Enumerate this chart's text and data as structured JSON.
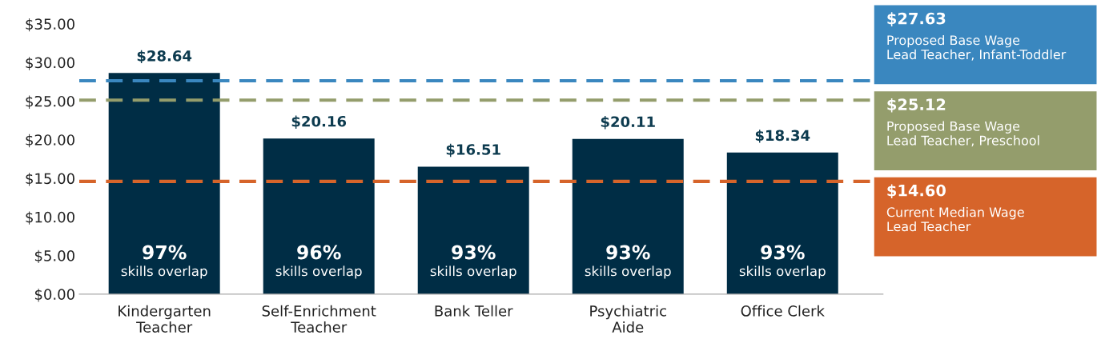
{
  "chart_data": {
    "type": "bar",
    "categories": [
      "Kindergarten\nTeacher",
      "Self-Enrichment\nTeacher",
      "Bank Teller",
      "Psychiatric\nAide",
      "Office Clerk"
    ],
    "values": [
      28.64,
      20.16,
      16.51,
      20.11,
      18.34
    ],
    "value_labels": [
      "$28.64",
      "$20.16",
      "$16.51",
      "$20.11",
      "$18.34"
    ],
    "color": "#002d45",
    "ylim": [
      0,
      35
    ],
    "yticks": [
      {
        "value": 0,
        "label": "$0.00"
      },
      {
        "value": 5,
        "label": "$5.00"
      },
      {
        "value": 10,
        "label": "$10.00"
      },
      {
        "value": 15,
        "label": "$15.00"
      },
      {
        "value": 20,
        "label": "$20.00"
      },
      {
        "value": 25,
        "label": "$25.00"
      },
      {
        "value": 30,
        "label": "$30.00"
      },
      {
        "value": 35,
        "label": "$35.00"
      }
    ],
    "grid": false,
    "ref_lines": [
      {
        "axis": "y",
        "value": 27.63,
        "label": "$27.63\nProposed Base Wage\nLead Teacher, Infant-Toddler",
        "color": "#3a87bf",
        "line_style": "dashed"
      },
      {
        "axis": "y",
        "value": 25.12,
        "label": "$25.12\nProposed Base Wage\nLead Teacher, Preschool",
        "color": "#949d6c",
        "line_style": "dashed"
      },
      {
        "axis": "y",
        "value": 14.6,
        "label": "$14.60\nCurrent Median Wage\nLead Teacher",
        "color": "#d6642a",
        "line_style": "dashed"
      }
    ],
    "annotations": [
      "97%\nskills overlap",
      "96%\nskills overlap",
      "93%\nskills overlap",
      "93%\nskills overlap",
      "93%\nskills overlap"
    ]
  }
}
